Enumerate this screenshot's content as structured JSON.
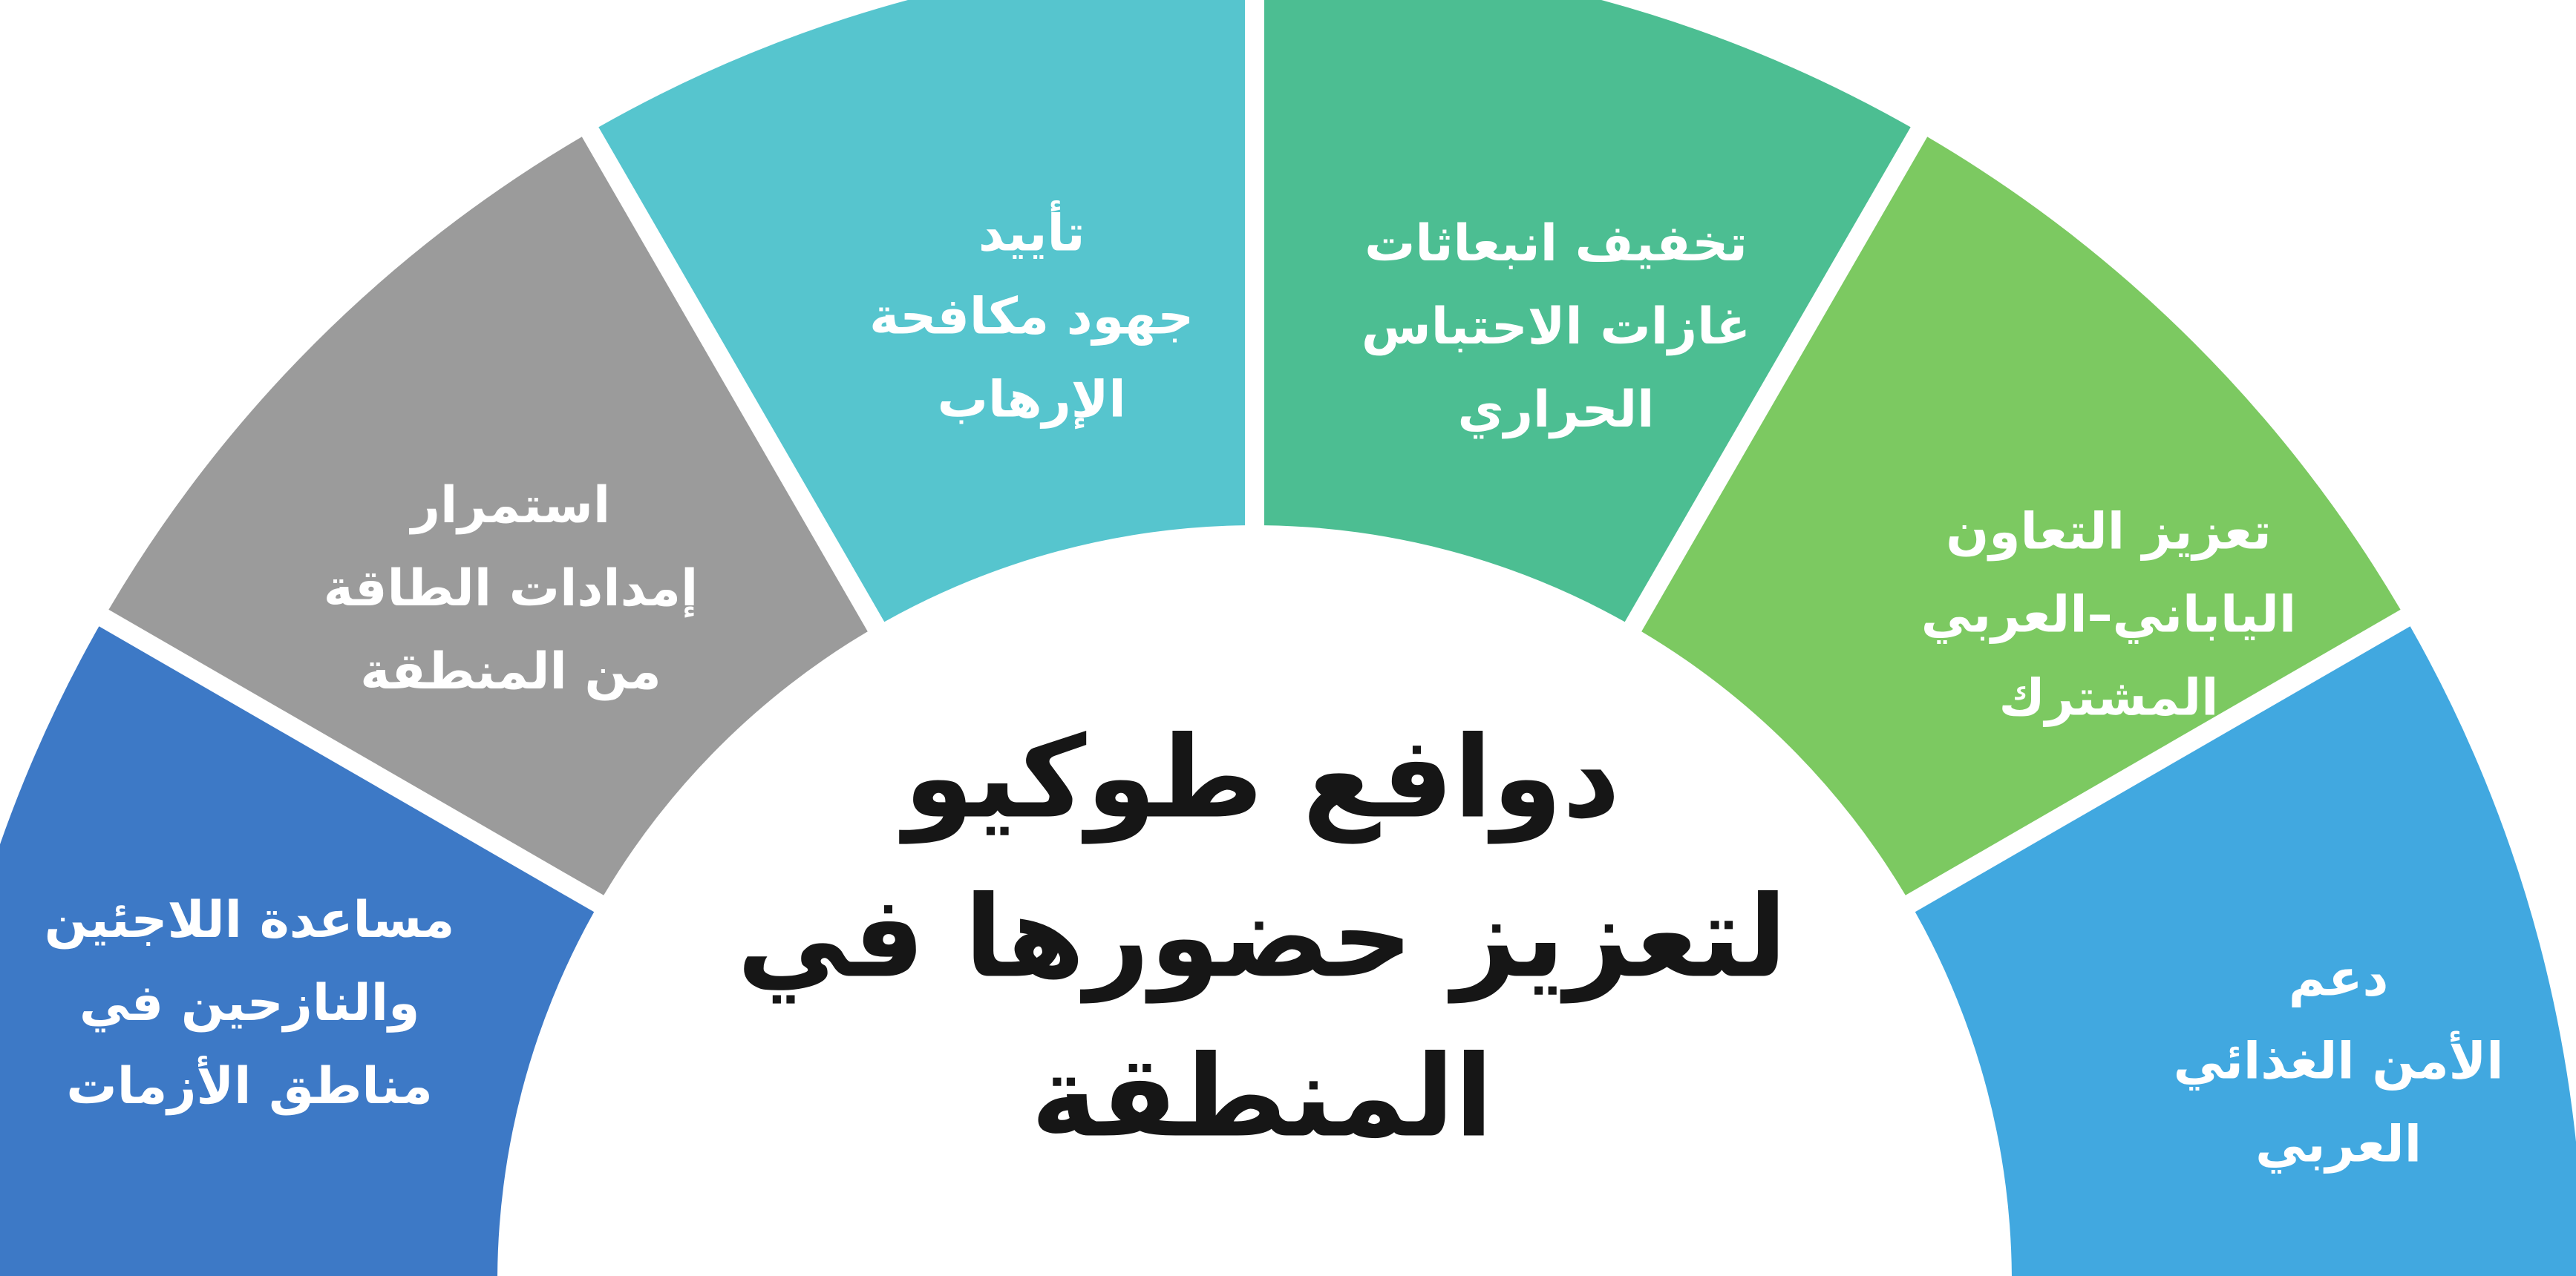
{
  "diagram": {
    "background": "#ffffff",
    "divider_color": "#ffffff",
    "label_color": "#ffffff",
    "title": {
      "color": "#161616",
      "lines": [
        "دوافع طوكيو",
        "لتعزيز حضورها في",
        "المنطقة"
      ]
    },
    "segments": [
      {
        "name": "refugees-displaced-aid",
        "color": "#3d79c6",
        "angle_start": 180,
        "angle_end": 150,
        "label_angle": 164.5,
        "label_radius": 1405,
        "label_lines": [
          "مساعدة اللاجئين",
          "والنازحين في",
          "مناطق الأزمات"
        ]
      },
      {
        "name": "energy-supplies",
        "color": "#9b9b9b",
        "angle_start": 150,
        "angle_end": 120,
        "label_angle": 137,
        "label_radius": 1370,
        "label_lines": [
          "استمرار",
          "إمدادات الطاقة",
          "من المنطقة"
        ]
      },
      {
        "name": "counter-terrorism-support",
        "color": "#56c5ce",
        "angle_start": 120,
        "angle_end": 90,
        "label_angle": 103,
        "label_radius": 1335,
        "label_lines": [
          "تأييد",
          "جهود مكافحة",
          "الإرهاب"
        ]
      },
      {
        "name": "greenhouse-gas-mitigation",
        "color": "#4cbe92",
        "angle_start": 90,
        "angle_end": 60,
        "label_angle": 72.5,
        "label_radius": 1350,
        "label_lines": [
          "تخفيف انبعاثات",
          "غازات الاحتباس",
          "الحراري"
        ]
      },
      {
        "name": "japan-arab-cooperation",
        "color": "#7cc961",
        "angle_start": 60,
        "angle_end": 30,
        "label_angle": 38,
        "label_radius": 1460,
        "label_lines": [
          "تعزيز التعاون",
          "الياباني–العربي",
          "المشترك"
        ]
      },
      {
        "name": "arab-food-security",
        "color": "#41a8e0",
        "angle_start": 30,
        "angle_end": 0,
        "label_angle": 11.5,
        "label_radius": 1490,
        "label_lines": [
          "دعم",
          "الأمن الغذائي",
          "العربي"
        ]
      }
    ]
  }
}
